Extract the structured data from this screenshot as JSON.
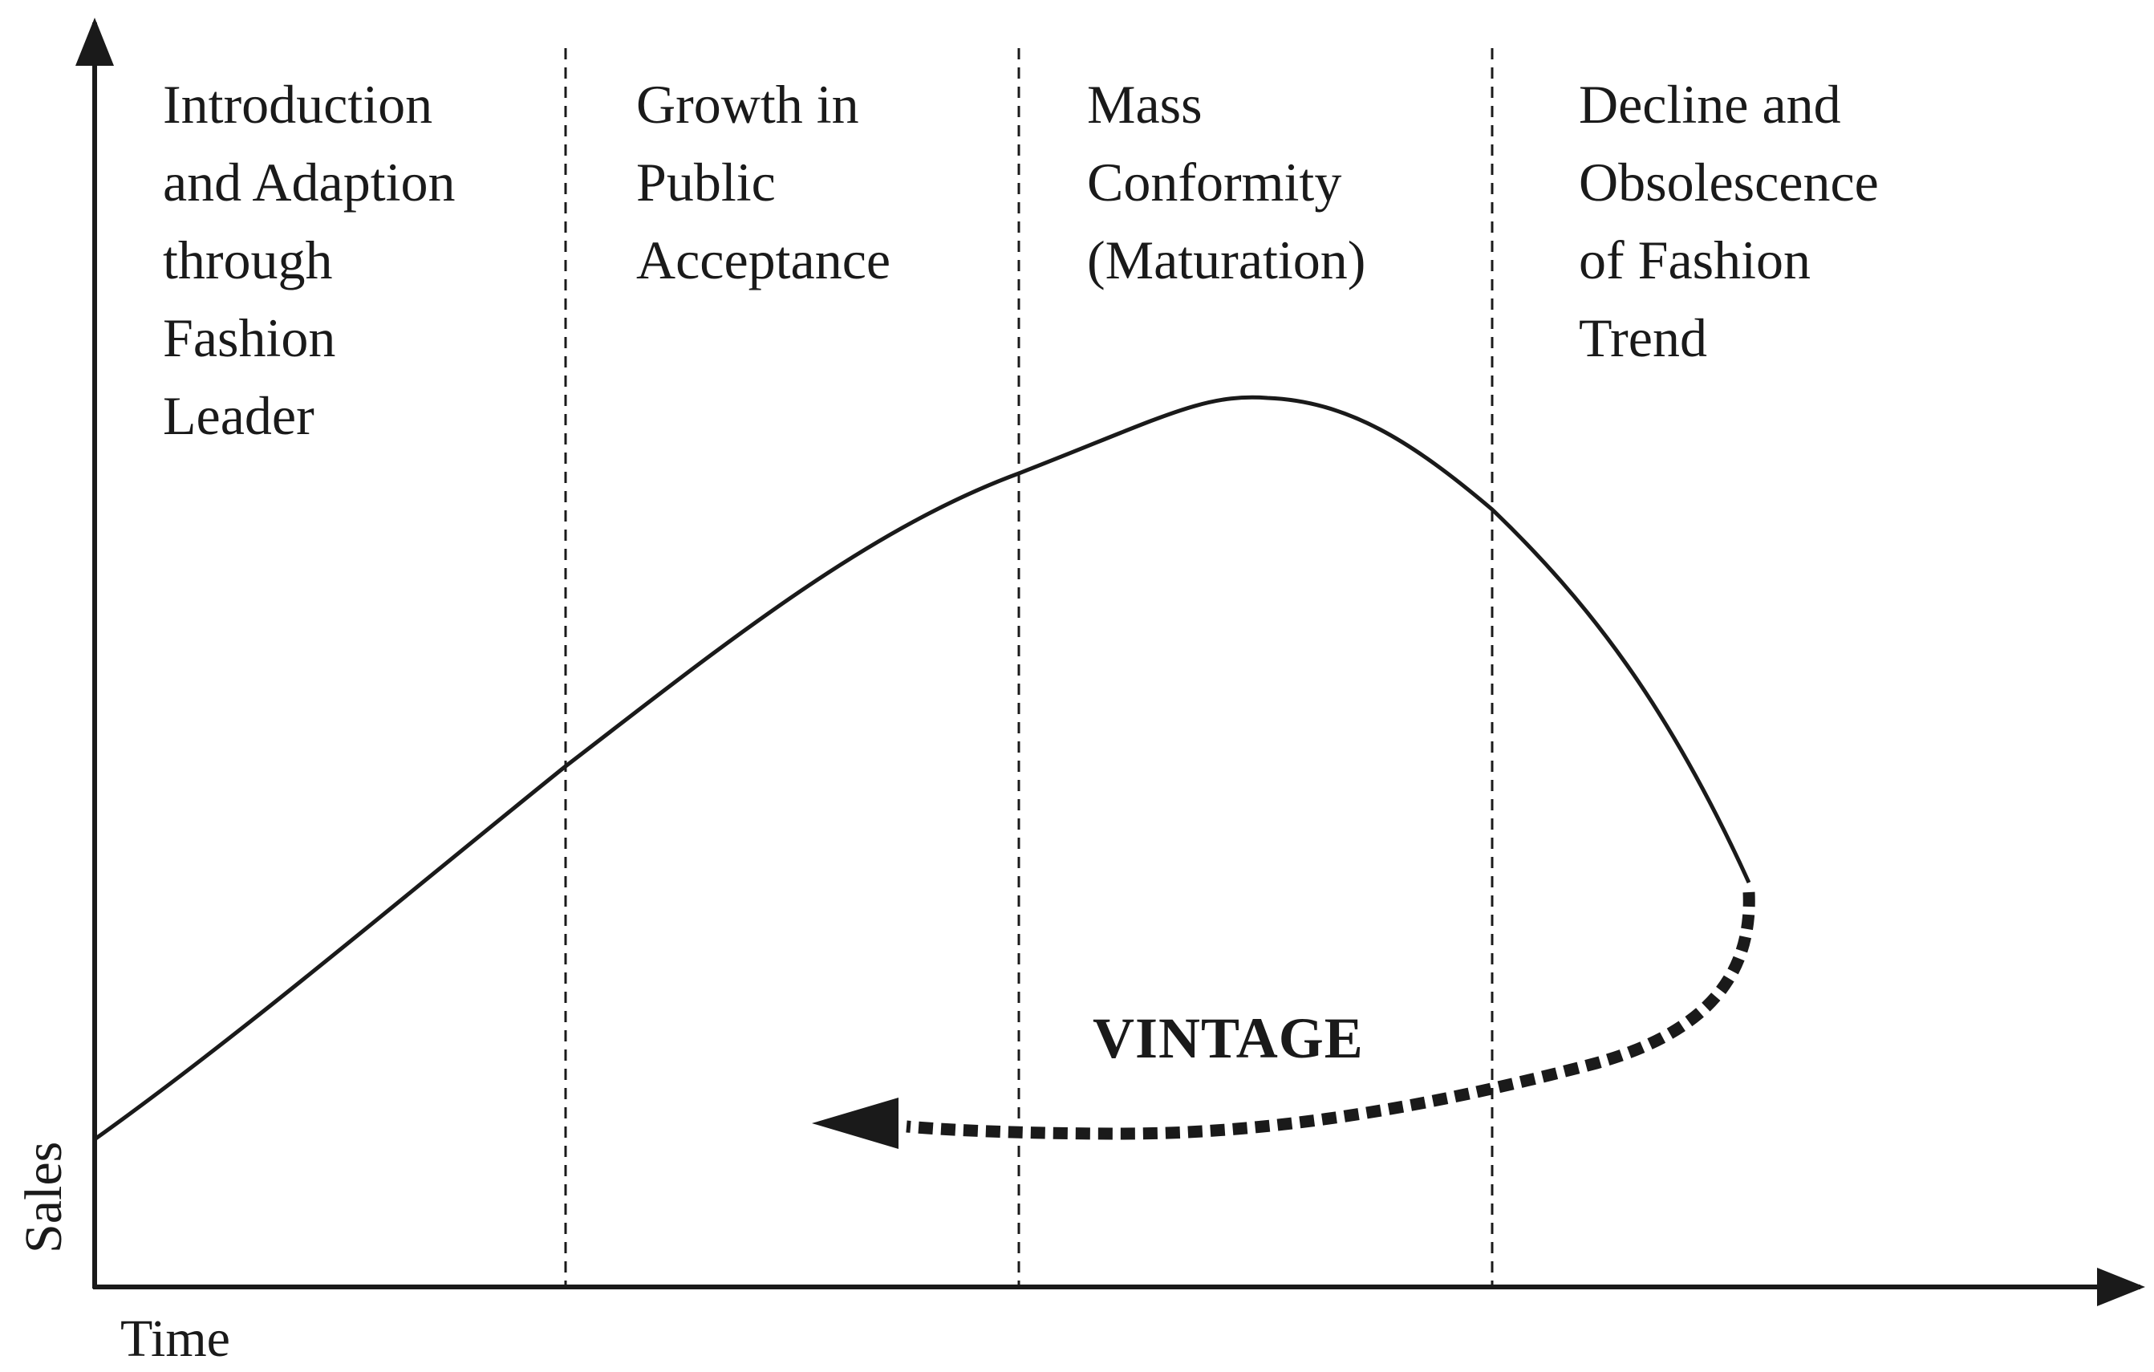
{
  "axes": {
    "x_label": "Time",
    "y_label": "Sales"
  },
  "stages": [
    {
      "lines": [
        "Introduction",
        "and Adaption",
        "through",
        "Fashion",
        "Leader"
      ]
    },
    {
      "lines": [
        "Growth in",
        "Public",
        "Acceptance"
      ]
    },
    {
      "lines": [
        "Mass",
        "Conformity",
        "(Maturation)"
      ]
    },
    {
      "lines": [
        "Decline and",
        "Obsolescence",
        "of Fashion",
        "Trend"
      ]
    }
  ],
  "vintage_label": "VINTAGE",
  "colors": {
    "ink": "#1a1a1a",
    "background": "#ffffff"
  }
}
